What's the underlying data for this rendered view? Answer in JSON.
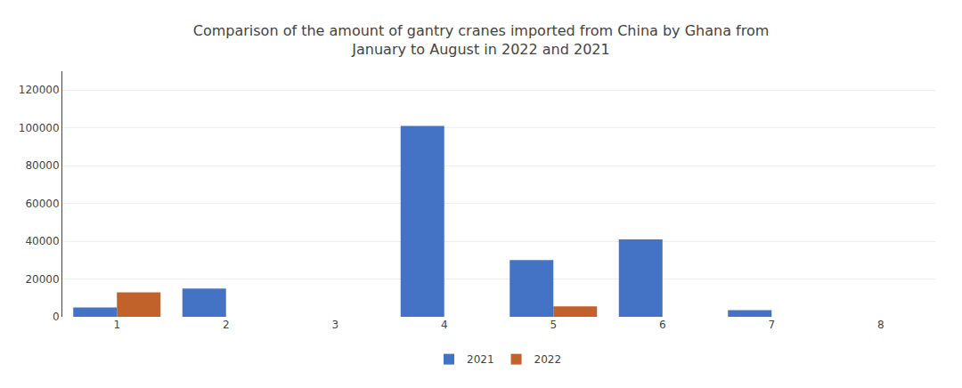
{
  "chart_data": {
    "type": "bar",
    "title": "Comparison of the amount of gantry cranes imported from China by Ghana from\nJanuary to August in 2022 and 2021",
    "categories": [
      "1",
      "2",
      "3",
      "4",
      "5",
      "6",
      "7",
      "8"
    ],
    "series": [
      {
        "name": "2021",
        "color": "#4472C4",
        "values": [
          5000,
          15000,
          0,
          101000,
          30000,
          41000,
          3500,
          0
        ]
      },
      {
        "name": "2022",
        "color": "#C0622A",
        "values": [
          13000,
          0,
          0,
          0,
          5500,
          0,
          0,
          0
        ]
      }
    ],
    "ylim": [
      0,
      130000
    ],
    "yticks": [
      0,
      20000,
      40000,
      60000,
      80000,
      100000,
      120000
    ],
    "grid": true,
    "legend": "bottom"
  }
}
